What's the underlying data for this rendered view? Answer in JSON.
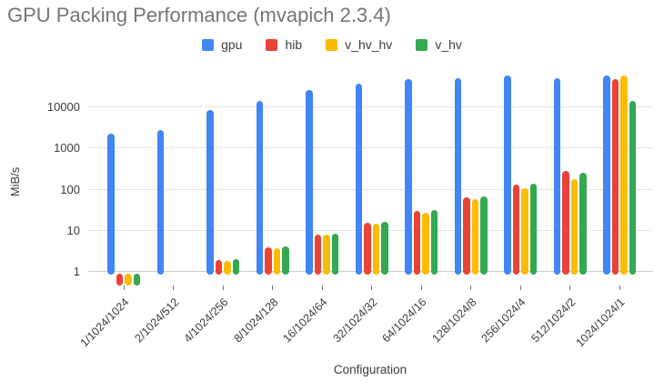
{
  "chart_data": {
    "type": "bar",
    "title": "GPU Packing Performance (mvapich 2.3.4)",
    "xlabel": "Configuration",
    "ylabel": "MiB/s",
    "y_scale": "log",
    "y_ticks": [
      1,
      10,
      100,
      1000,
      10000
    ],
    "ylim": [
      0.45,
      65000
    ],
    "grid": true,
    "legend_position": "top",
    "categories": [
      "1/1024/1024",
      "2/1024/512",
      "4/1024/256",
      "8/1024/128",
      "16/1024/64",
      "32/1024/32",
      "64/1024/16",
      "128/1024/8",
      "256/1024/4",
      "512/1024/2",
      "1024/1024/1"
    ],
    "series": [
      {
        "name": "gpu",
        "color": "#4285F4",
        "values": [
          2200,
          2700,
          8400,
          13500,
          25000,
          36000,
          46000,
          48000,
          56000,
          50000,
          58000
        ]
      },
      {
        "name": "hib",
        "color": "#EA4335",
        "values": [
          0.45,
          null,
          1.8,
          3.7,
          7.8,
          15,
          29,
          62,
          125,
          265,
          46000
        ]
      },
      {
        "name": "v_hv_hv",
        "color": "#FBBC04",
        "values": [
          0.45,
          null,
          1.75,
          3.6,
          7.6,
          14,
          26,
          55,
          103,
          170,
          57000
        ]
      },
      {
        "name": "v_hv",
        "color": "#34A853",
        "values": [
          0.45,
          null,
          1.9,
          3.9,
          8.2,
          16,
          30,
          64,
          130,
          245,
          13500
        ]
      }
    ]
  }
}
